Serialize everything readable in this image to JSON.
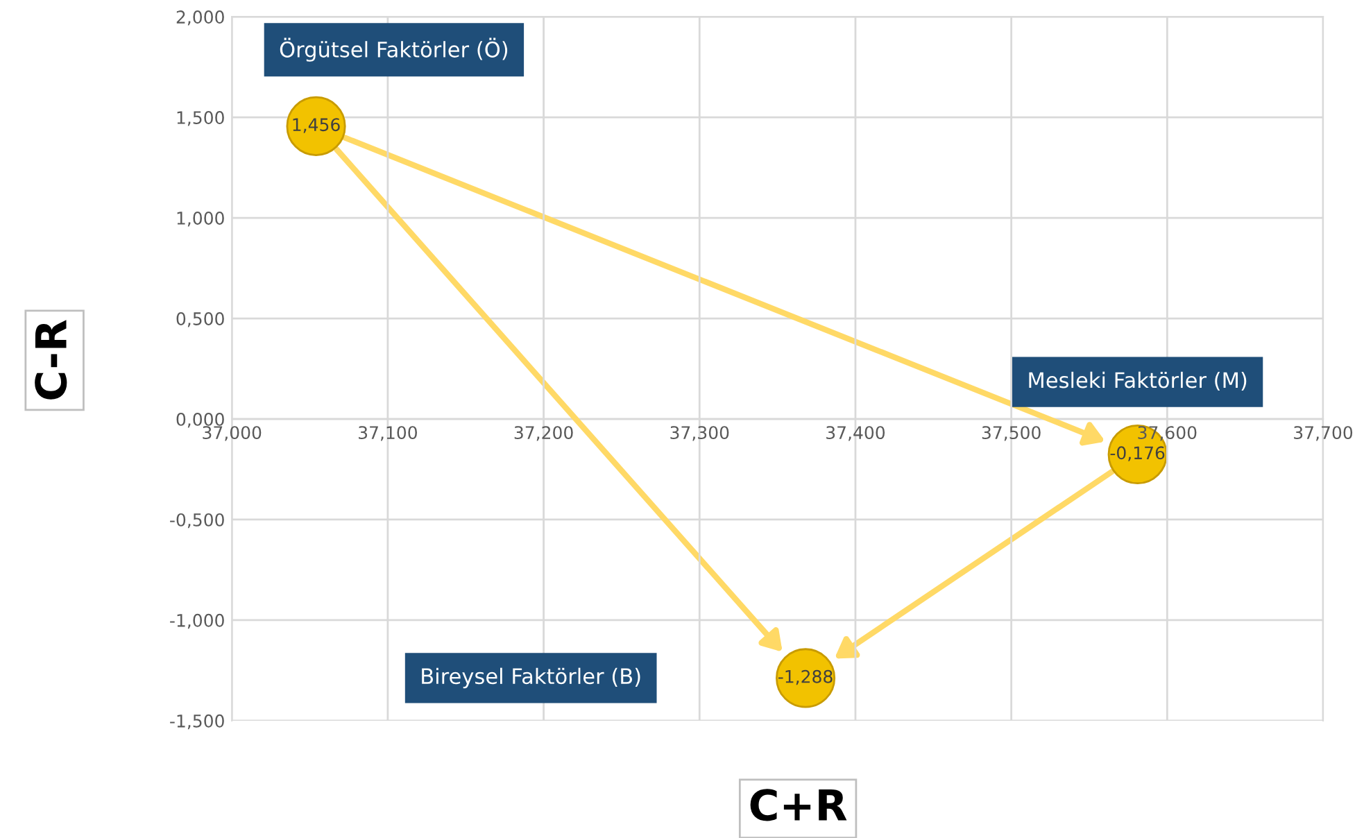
{
  "chart_data": {
    "type": "scatter",
    "xlabel": "C+R",
    "ylabel": "C-R",
    "x": [
      37.054,
      37.581,
      37.368
    ],
    "series": [
      {
        "color": "#f2c200",
        "values": [
          1.456,
          -0.176,
          -1.288
        ],
        "value_labels": [
          "1,456",
          "-0,176",
          "-1,288"
        ]
      }
    ],
    "annotations": [
      "Örgütsel Faktörler (Ö)",
      "Mesleki Faktörler (M)",
      "Bireysel Faktörler (B)"
    ],
    "xlim": [
      37.0,
      37.7
    ],
    "ylim": [
      -1.5,
      2.0
    ],
    "xticks": [
      {
        "value": 37.0,
        "label": "37,000"
      },
      {
        "value": 37.1,
        "label": "37,100"
      },
      {
        "value": 37.2,
        "label": "37,200"
      },
      {
        "value": 37.3,
        "label": "37,300"
      },
      {
        "value": 37.4,
        "label": "37,400"
      },
      {
        "value": 37.5,
        "label": "37,500"
      },
      {
        "value": 37.6,
        "label": "37,600"
      },
      {
        "value": 37.7,
        "label": "37,700"
      }
    ],
    "yticks": [
      {
        "value": 2.0,
        "label": "2,000"
      },
      {
        "value": 1.5,
        "label": "1,500"
      },
      {
        "value": 1.0,
        "label": "1,000"
      },
      {
        "value": 0.5,
        "label": "0,500"
      },
      {
        "value": 0.0,
        "label": "0,000"
      },
      {
        "value": -0.5,
        "label": "-0,500"
      },
      {
        "value": -1.0,
        "label": "-1,000"
      },
      {
        "value": -1.5,
        "label": "-1,500"
      }
    ],
    "grid": true,
    "marker": "circle",
    "legend": false
  }
}
